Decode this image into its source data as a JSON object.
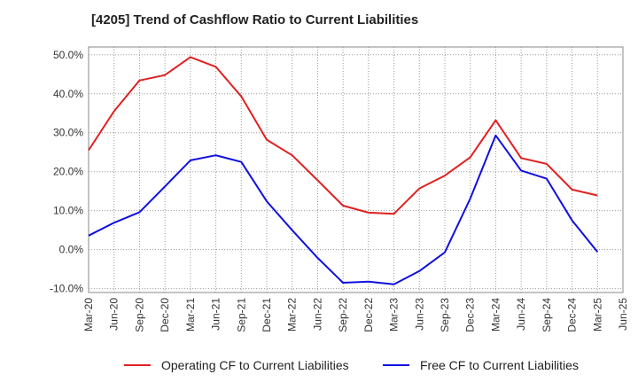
{
  "chart_data": {
    "type": "line",
    "title": "[4205]  Trend of Cashflow Ratio to Current Liabilities",
    "x": [
      "Mar-20",
      "Jun-20",
      "Sep-20",
      "Dec-20",
      "Mar-21",
      "Jun-21",
      "Sep-21",
      "Dec-21",
      "Mar-22",
      "Jun-22",
      "Sep-22",
      "Dec-22",
      "Mar-23",
      "Jun-23",
      "Sep-23",
      "Dec-23",
      "Mar-24",
      "Jun-24",
      "Sep-24",
      "Dec-24",
      "Mar-25"
    ],
    "x_ticks": [
      "Mar-20",
      "Jun-20",
      "Sep-20",
      "Dec-20",
      "Mar-21",
      "Jun-21",
      "Sep-21",
      "Dec-21",
      "Mar-22",
      "Jun-22",
      "Sep-22",
      "Dec-22",
      "Mar-23",
      "Jun-23",
      "Sep-23",
      "Dec-23",
      "Mar-24",
      "Jun-24",
      "Sep-24",
      "Dec-24",
      "Mar-25",
      "Jun-25"
    ],
    "y_ticks": [
      "50.0%",
      "40.0%",
      "30.0%",
      "20.0%",
      "10.0%",
      "0.0%",
      "-10.0%"
    ],
    "ylim": [
      -11,
      52
    ],
    "grid": true,
    "legend_position": "bottom",
    "series": [
      {
        "name": "Operating CF to Current Liabilities",
        "color": "#e02020",
        "values": [
          25.5,
          35.5,
          43.4,
          44.8,
          49.4,
          46.9,
          39.3,
          28.2,
          24.2,
          17.8,
          11.3,
          9.5,
          9.2,
          15.7,
          19.0,
          23.7,
          33.2,
          23.5,
          22.0,
          15.4,
          13.9
        ]
      },
      {
        "name": "Free CF to Current Liabilities",
        "color": "#1010e0",
        "values": [
          3.6,
          6.9,
          9.6,
          16.2,
          22.9,
          24.2,
          22.5,
          12.4,
          5.0,
          -2.1,
          -8.5,
          -8.2,
          -8.9,
          -5.5,
          -0.7,
          13.1,
          29.3,
          20.3,
          18.2,
          7.5,
          -0.6
        ]
      }
    ]
  }
}
